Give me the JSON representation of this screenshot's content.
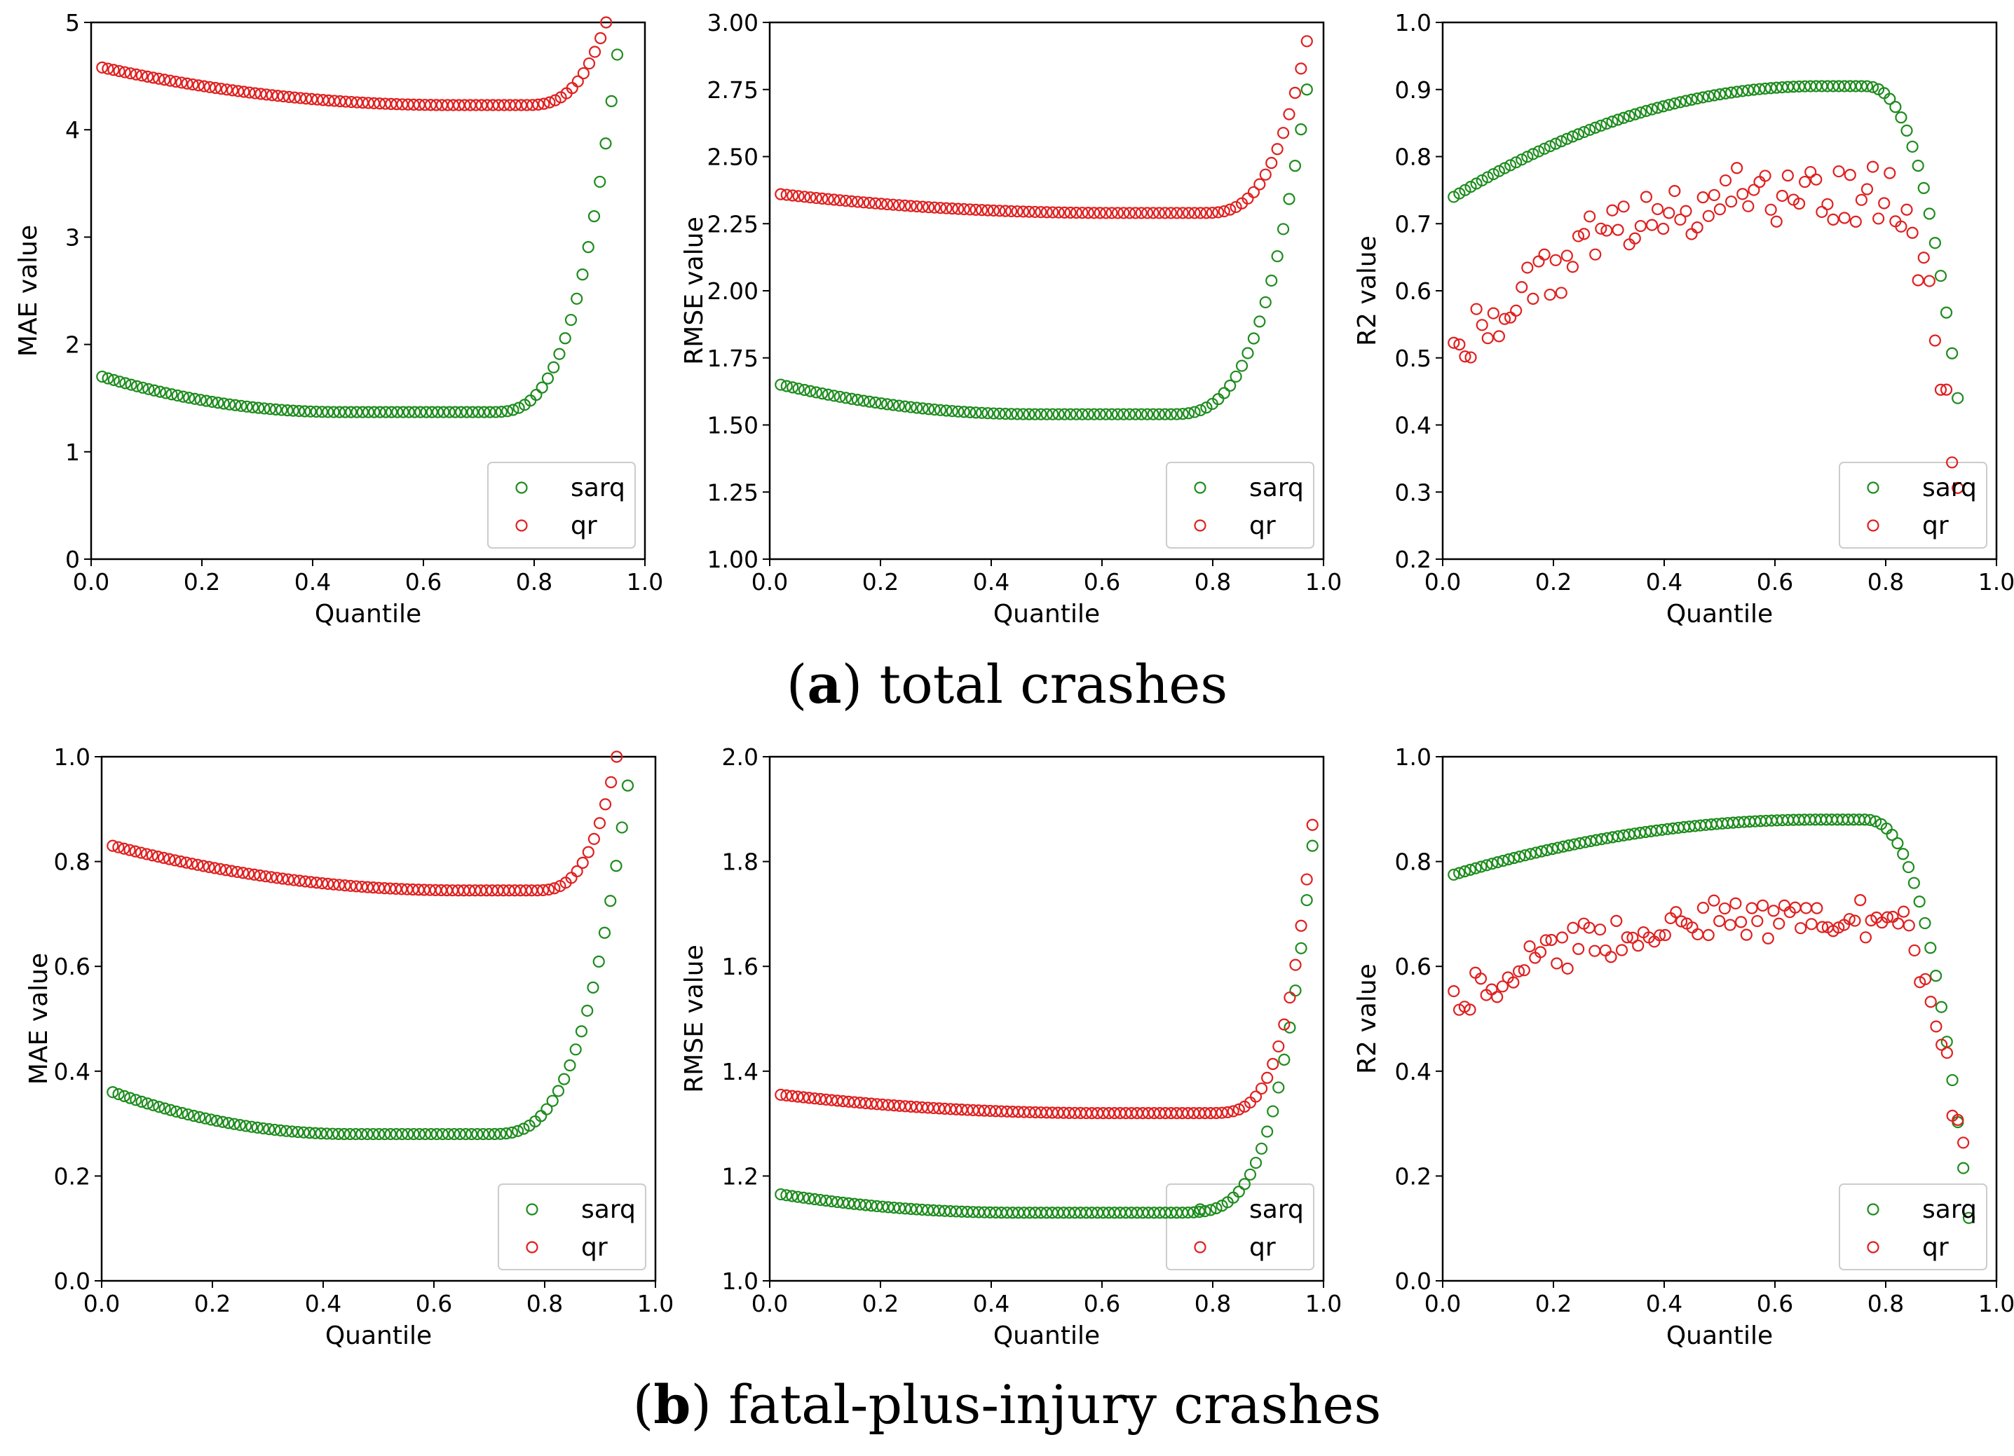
{
  "captions": {
    "a": {
      "letter": "a",
      "text": "total crashes"
    },
    "b": {
      "letter": "b",
      "text": "fatal-plus-injury crashes"
    }
  },
  "colors": {
    "sarq": "#1e8c1e",
    "qr": "#e02020"
  },
  "chart_data": [
    {
      "id": "a1",
      "type": "scatter",
      "xlabel": "Quantile",
      "ylabel": "MAE value",
      "xlim": [
        0,
        1
      ],
      "ylim": [
        0,
        5
      ],
      "xticks": [
        "0.0",
        "0.2",
        "0.4",
        "0.6",
        "0.8",
        "1.0"
      ],
      "yticks": [
        "0",
        "1",
        "2",
        "3",
        "4",
        "5"
      ],
      "legend": {
        "position": "bottom-right",
        "entries": [
          "sarq",
          "qr"
        ]
      },
      "series": [
        {
          "name": "sarq",
          "curve": {
            "x0": 0.02,
            "x1": 0.95,
            "v0": 1.7,
            "vmin": 1.37,
            "xmin": 0.45,
            "knee": 0.72,
            "vend": 4.7,
            "p": 3,
            "n": 90,
            "jitter": 0
          }
        },
        {
          "name": "qr",
          "curve": {
            "x0": 0.02,
            "x1": 0.93,
            "v0": 4.58,
            "vmin": 4.23,
            "xmin": 0.65,
            "knee": 0.78,
            "vend": 5.0,
            "p": 3,
            "n": 90,
            "jitter": 0
          }
        }
      ]
    },
    {
      "id": "a2",
      "type": "scatter",
      "xlabel": "Quantile",
      "ylabel": "RMSE value",
      "xlim": [
        0,
        1
      ],
      "ylim": [
        1.0,
        3.0
      ],
      "xticks": [
        "0.0",
        "0.2",
        "0.4",
        "0.6",
        "0.8",
        "1.0"
      ],
      "yticks": [
        "1.00",
        "1.25",
        "1.50",
        "1.75",
        "2.00",
        "2.25",
        "2.50",
        "2.75",
        "3.00"
      ],
      "legend": {
        "position": "bottom-right",
        "entries": [
          "sarq",
          "qr"
        ]
      },
      "series": [
        {
          "name": "sarq",
          "curve": {
            "x0": 0.02,
            "x1": 0.97,
            "v0": 1.65,
            "vmin": 1.54,
            "xmin": 0.48,
            "knee": 0.72,
            "vend": 2.75,
            "p": 3,
            "n": 90,
            "jitter": 0
          }
        },
        {
          "name": "qr",
          "curve": {
            "x0": 0.02,
            "x1": 0.97,
            "v0": 2.36,
            "vmin": 2.29,
            "xmin": 0.62,
            "knee": 0.78,
            "vend": 2.93,
            "p": 3,
            "n": 90,
            "jitter": 0
          }
        }
      ]
    },
    {
      "id": "a3",
      "type": "scatter",
      "xlabel": "Quantile",
      "ylabel": "R2 value",
      "xlim": [
        0,
        1
      ],
      "ylim": [
        0.2,
        1.0
      ],
      "xticks": [
        "0.0",
        "0.2",
        "0.4",
        "0.6",
        "0.8",
        "1.0"
      ],
      "yticks": [
        "0.2",
        "0.3",
        "0.4",
        "0.5",
        "0.6",
        "0.7",
        "0.8",
        "0.9",
        "1.0"
      ],
      "legend": {
        "position": "bottom-right",
        "entries": [
          "sarq",
          "qr"
        ]
      },
      "series": [
        {
          "name": "sarq",
          "curve": {
            "x0": 0.02,
            "x1": 0.93,
            "v0": 0.74,
            "vmin": 0.905,
            "xmin": 0.68,
            "knee": 0.76,
            "vend": 0.44,
            "p": 2.5,
            "n": 90,
            "jitter": 0
          }
        },
        {
          "name": "qr",
          "curve": {
            "x0": 0.02,
            "x1": 0.93,
            "v0": 0.51,
            "vmin": 0.745,
            "xmin": 0.6,
            "knee": 0.8,
            "vend": 0.27,
            "p": 2,
            "n": 90,
            "jitter": 0.045
          }
        }
      ]
    },
    {
      "id": "b1",
      "type": "scatter",
      "xlabel": "Quantile",
      "ylabel": "MAE value",
      "xlim": [
        0,
        1
      ],
      "ylim": [
        0,
        1.0
      ],
      "xticks": [
        "0.0",
        "0.2",
        "0.4",
        "0.6",
        "0.8",
        "1.0"
      ],
      "yticks": [
        "0.0",
        "0.2",
        "0.4",
        "0.6",
        "0.8",
        "1.0"
      ],
      "legend": {
        "position": "bottom-right",
        "entries": [
          "sarq",
          "qr"
        ]
      },
      "series": [
        {
          "name": "sarq",
          "curve": {
            "x0": 0.02,
            "x1": 0.95,
            "v0": 0.36,
            "vmin": 0.28,
            "xmin": 0.45,
            "knee": 0.7,
            "vend": 0.945,
            "p": 3,
            "n": 90,
            "jitter": 0
          }
        },
        {
          "name": "qr",
          "curve": {
            "x0": 0.02,
            "x1": 0.93,
            "v0": 0.83,
            "vmin": 0.745,
            "xmin": 0.65,
            "knee": 0.78,
            "vend": 1.0,
            "p": 3,
            "n": 90,
            "jitter": 0
          }
        }
      ]
    },
    {
      "id": "b2",
      "type": "scatter",
      "xlabel": "Quantile",
      "ylabel": "RMSE value",
      "xlim": [
        0,
        1
      ],
      "ylim": [
        1.0,
        2.0
      ],
      "xticks": [
        "0.0",
        "0.2",
        "0.4",
        "0.6",
        "0.8",
        "1.0"
      ],
      "yticks": [
        "1.0",
        "1.2",
        "1.4",
        "1.6",
        "1.8",
        "2.0"
      ],
      "legend": {
        "position": "bottom-right",
        "entries": [
          "sarq",
          "qr"
        ]
      },
      "series": [
        {
          "name": "sarq",
          "curve": {
            "x0": 0.02,
            "x1": 0.98,
            "v0": 1.165,
            "vmin": 1.13,
            "xmin": 0.45,
            "knee": 0.72,
            "vend": 1.83,
            "p": 4,
            "n": 95,
            "jitter": 0
          }
        },
        {
          "name": "qr",
          "curve": {
            "x0": 0.02,
            "x1": 0.98,
            "v0": 1.355,
            "vmin": 1.32,
            "xmin": 0.6,
            "knee": 0.78,
            "vend": 1.87,
            "p": 4,
            "n": 95,
            "jitter": 0
          }
        }
      ]
    },
    {
      "id": "b3",
      "type": "scatter",
      "xlabel": "Quantile",
      "ylabel": "R2 value",
      "xlim": [
        0,
        1
      ],
      "ylim": [
        0.0,
        1.0
      ],
      "xticks": [
        "0.0",
        "0.2",
        "0.4",
        "0.6",
        "0.8",
        "1.0"
      ],
      "yticks": [
        "0.0",
        "0.2",
        "0.4",
        "0.6",
        "0.8",
        "1.0"
      ],
      "legend": {
        "position": "bottom-right",
        "entries": [
          "sarq",
          "qr"
        ]
      },
      "series": [
        {
          "name": "sarq",
          "curve": {
            "x0": 0.02,
            "x1": 0.95,
            "v0": 0.775,
            "vmin": 0.88,
            "xmin": 0.68,
            "knee": 0.76,
            "vend": 0.12,
            "p": 2.5,
            "n": 95,
            "jitter": 0
          }
        },
        {
          "name": "qr",
          "curve": {
            "x0": 0.02,
            "x1": 0.94,
            "v0": 0.54,
            "vmin": 0.69,
            "xmin": 0.55,
            "knee": 0.8,
            "vend": 0.23,
            "p": 2,
            "n": 95,
            "jitter": 0.04
          }
        }
      ]
    }
  ]
}
